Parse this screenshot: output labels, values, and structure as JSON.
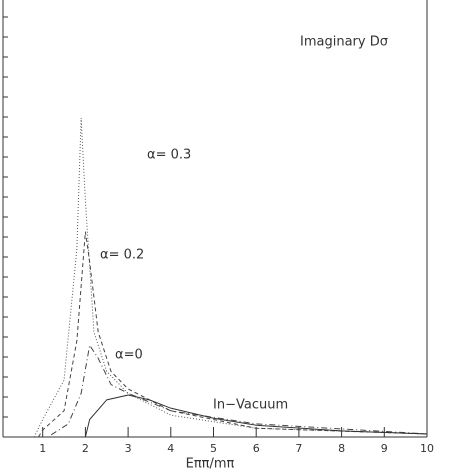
{
  "chart_data": {
    "type": "line",
    "title": "Imaginary Dσ",
    "xlabel": "Eππ/mπ",
    "xlim": [
      0,
      10
    ],
    "ylim": [
      0,
      1
    ],
    "xticks": [
      1,
      2,
      3,
      4,
      5,
      6,
      7,
      8,
      9,
      10
    ],
    "series": [
      {
        "name": "α= 0.3",
        "color": "#555555",
        "dash": "1 2",
        "x": [
          0.8,
          1,
          1.5,
          1.8,
          1.9,
          2.0,
          2.2,
          2.5,
          3,
          4,
          6,
          10
        ],
        "values": [
          0,
          0.04,
          0.13,
          0.43,
          0.73,
          0.54,
          0.24,
          0.15,
          0.1,
          0.05,
          0.02,
          0.007
        ]
      },
      {
        "name": "α= 0.2",
        "color": "#444444",
        "dash": "4 3",
        "x": [
          0.9,
          1,
          1.5,
          1.8,
          2.0,
          2.1,
          2.3,
          2.6,
          3,
          4,
          6,
          10
        ],
        "values": [
          0,
          0.016,
          0.06,
          0.22,
          0.47,
          0.4,
          0.24,
          0.15,
          0.11,
          0.06,
          0.02,
          0.007
        ]
      },
      {
        "name": "α=0",
        "color": "#444444",
        "dash": "6 3 1 3",
        "x": [
          1.2,
          1.6,
          1.9,
          2.1,
          2.3,
          2.6,
          3,
          4,
          6,
          10
        ],
        "values": [
          0.005,
          0.03,
          0.1,
          0.21,
          0.18,
          0.12,
          0.1,
          0.06,
          0.03,
          0.007
        ]
      },
      {
        "name": "In−Vacuum",
        "color": "#333333",
        "dash": "none",
        "x": [
          2,
          2.1,
          2.5,
          3,
          3.5,
          4,
          5,
          6,
          8,
          10
        ],
        "values": [
          0,
          0.04,
          0.085,
          0.096,
          0.085,
          0.066,
          0.043,
          0.027,
          0.014,
          0.007
        ]
      }
    ]
  }
}
